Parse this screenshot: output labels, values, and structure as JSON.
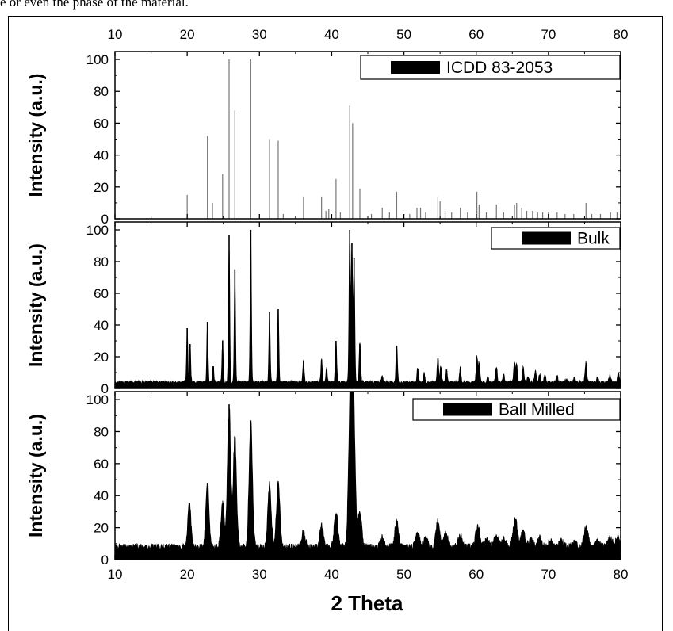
{
  "page": {
    "top_text": "e or even the phase of the material."
  },
  "chart_data": {
    "type": "bar",
    "xlabel": "2 Theta",
    "xlim": [
      10,
      80
    ],
    "x_ticks": [
      10,
      20,
      30,
      40,
      50,
      60,
      70,
      80
    ],
    "grid": false,
    "panels": [
      {
        "ylabel": "Intensity (a.u.)",
        "ylim": [
          0,
          105
        ],
        "y_ticks": [
          0,
          20,
          40,
          60,
          80,
          100
        ],
        "legend": "ICDD 83-2053",
        "legend_position": "top-right",
        "style": "stick",
        "peaks": [
          [
            15.0,
            1
          ],
          [
            20.0,
            15
          ],
          [
            22.8,
            52
          ],
          [
            23.5,
            10
          ],
          [
            24.9,
            28
          ],
          [
            25.8,
            100
          ],
          [
            26.6,
            68
          ],
          [
            28.8,
            100
          ],
          [
            31.4,
            50
          ],
          [
            32.6,
            49
          ],
          [
            33.3,
            3
          ],
          [
            36.1,
            14
          ],
          [
            38.6,
            14
          ],
          [
            39.2,
            5
          ],
          [
            39.6,
            6
          ],
          [
            40.6,
            25
          ],
          [
            41.2,
            4
          ],
          [
            42.5,
            71
          ],
          [
            42.9,
            60
          ],
          [
            43.9,
            19
          ],
          [
            45.5,
            3
          ],
          [
            47.0,
            7
          ],
          [
            48.0,
            4
          ],
          [
            49.0,
            17
          ],
          [
            50.8,
            3
          ],
          [
            51.8,
            7
          ],
          [
            52.3,
            7
          ],
          [
            53.0,
            4
          ],
          [
            54.7,
            14
          ],
          [
            55.0,
            11
          ],
          [
            55.7,
            5
          ],
          [
            56.6,
            4
          ],
          [
            57.8,
            7
          ],
          [
            58.8,
            4
          ],
          [
            60.1,
            17
          ],
          [
            60.4,
            9
          ],
          [
            61.4,
            4
          ],
          [
            62.8,
            9
          ],
          [
            63.8,
            4
          ],
          [
            65.3,
            9
          ],
          [
            65.6,
            10
          ],
          [
            66.3,
            7
          ],
          [
            67.0,
            5
          ],
          [
            67.8,
            5
          ],
          [
            68.5,
            4
          ],
          [
            69.2,
            4
          ],
          [
            70.0,
            4
          ],
          [
            71.2,
            4
          ],
          [
            72.3,
            3
          ],
          [
            73.5,
            3
          ],
          [
            75.2,
            10
          ],
          [
            76.0,
            3
          ],
          [
            77.2,
            3
          ],
          [
            78.6,
            4
          ],
          [
            79.5,
            4
          ]
        ]
      },
      {
        "ylabel": "Intensity (a.u.)",
        "ylim": [
          0,
          105
        ],
        "y_ticks": [
          0,
          20,
          40,
          60,
          80,
          100
        ],
        "legend": "Bulk",
        "legend_position": "top-right",
        "style": "pattern",
        "baseline": 3,
        "noise": 2,
        "width_scale": 1,
        "peaks": [
          [
            20.0,
            38
          ],
          [
            20.4,
            28
          ],
          [
            22.8,
            42
          ],
          [
            23.6,
            14
          ],
          [
            24.9,
            30
          ],
          [
            25.8,
            97
          ],
          [
            26.6,
            75
          ],
          [
            28.8,
            100
          ],
          [
            31.4,
            48
          ],
          [
            32.6,
            50
          ],
          [
            36.1,
            17
          ],
          [
            38.6,
            18
          ],
          [
            39.3,
            12
          ],
          [
            40.6,
            30
          ],
          [
            42.5,
            100
          ],
          [
            42.8,
            92
          ],
          [
            43.1,
            82
          ],
          [
            43.9,
            28
          ],
          [
            47.0,
            7
          ],
          [
            49.0,
            27
          ],
          [
            51.9,
            12
          ],
          [
            52.8,
            9
          ],
          [
            54.7,
            19
          ],
          [
            55.1,
            13
          ],
          [
            55.9,
            11
          ],
          [
            57.8,
            12
          ],
          [
            60.1,
            19
          ],
          [
            60.4,
            16
          ],
          [
            61.6,
            6
          ],
          [
            62.8,
            13
          ],
          [
            63.8,
            8
          ],
          [
            65.3,
            16
          ],
          [
            65.6,
            14
          ],
          [
            66.5,
            12
          ],
          [
            67.2,
            7
          ],
          [
            68.2,
            10
          ],
          [
            68.8,
            8
          ],
          [
            69.5,
            8
          ],
          [
            71.2,
            7
          ],
          [
            72.5,
            5
          ],
          [
            73.6,
            6
          ],
          [
            75.2,
            16
          ],
          [
            76.8,
            6
          ],
          [
            78.5,
            8
          ],
          [
            79.7,
            9
          ]
        ]
      },
      {
        "ylabel": "Intensity (a.u.)",
        "ylim": [
          0,
          105
        ],
        "y_ticks": [
          0,
          20,
          40,
          60,
          80,
          100
        ],
        "legend": "Ball Milled",
        "legend_position": "top-right",
        "style": "pattern",
        "baseline": 6,
        "noise": 4,
        "width_scale": 2.6,
        "peaks": [
          [
            20.3,
            34
          ],
          [
            22.8,
            48
          ],
          [
            24.9,
            35
          ],
          [
            25.8,
            97
          ],
          [
            26.6,
            77
          ],
          [
            28.8,
            87
          ],
          [
            31.4,
            46
          ],
          [
            32.6,
            48
          ],
          [
            36.1,
            16
          ],
          [
            38.6,
            20
          ],
          [
            40.6,
            28
          ],
          [
            42.6,
            100
          ],
          [
            43.0,
            90
          ],
          [
            43.9,
            28
          ],
          [
            47.0,
            12
          ],
          [
            49.0,
            22
          ],
          [
            51.9,
            15
          ],
          [
            53.0,
            12
          ],
          [
            54.7,
            23
          ],
          [
            55.8,
            15
          ],
          [
            57.8,
            14
          ],
          [
            60.2,
            20
          ],
          [
            61.5,
            11
          ],
          [
            62.8,
            14
          ],
          [
            63.8,
            11
          ],
          [
            65.4,
            24
          ],
          [
            66.5,
            16
          ],
          [
            67.6,
            11
          ],
          [
            68.8,
            12
          ],
          [
            70.2,
            10
          ],
          [
            71.8,
            10
          ],
          [
            73.5,
            10
          ],
          [
            75.2,
            18
          ],
          [
            76.8,
            10
          ],
          [
            78.5,
            12
          ],
          [
            79.6,
            12
          ]
        ]
      }
    ]
  },
  "colors": {
    "ink": "#000000",
    "stick_grey": "#777777",
    "background": "#ffffff"
  }
}
